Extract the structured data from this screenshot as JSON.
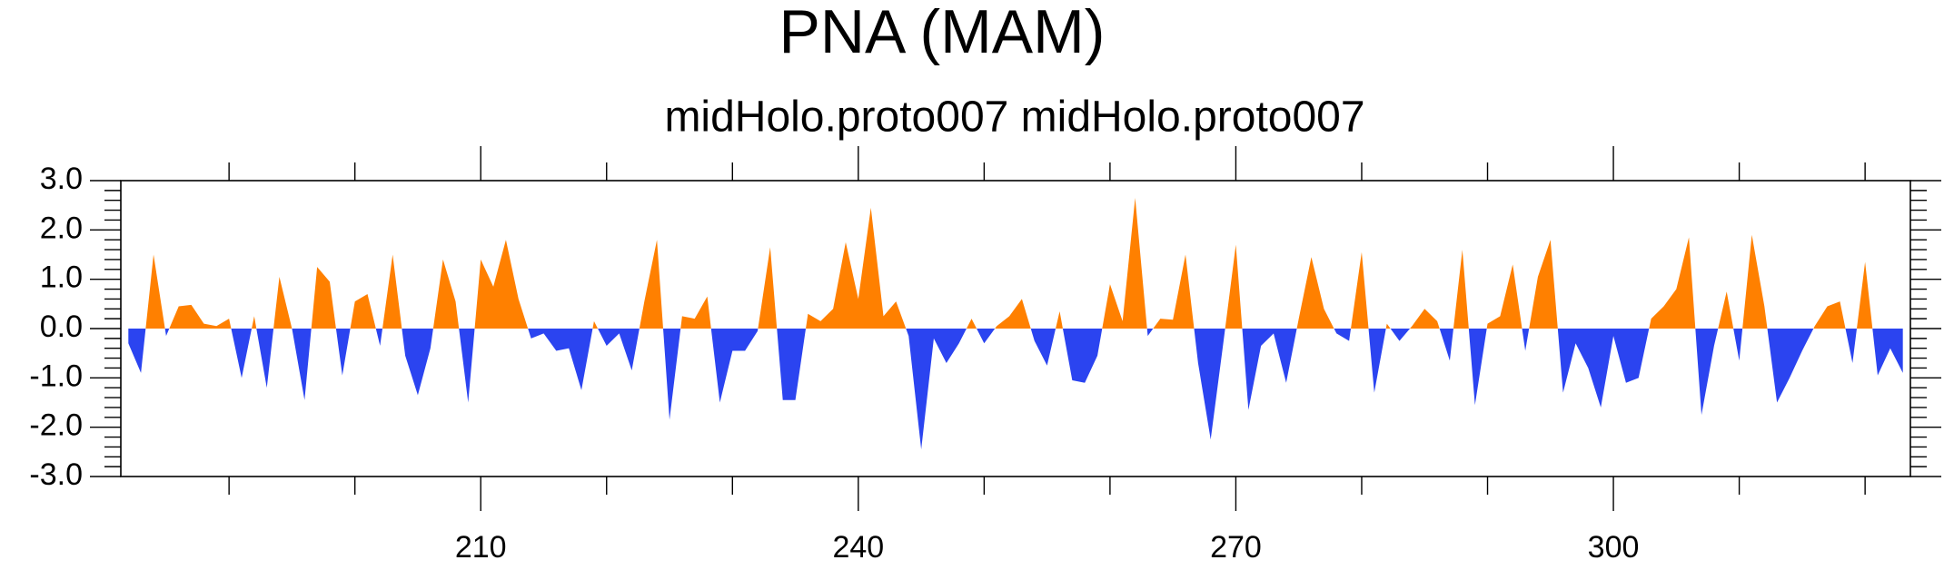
{
  "chart_data": {
    "type": "area",
    "title": "PNA (MAM)",
    "subtitle": "midHolo.proto007  midHolo.proto007",
    "x": [
      182,
      183,
      184,
      185,
      186,
      187,
      188,
      189,
      190,
      191,
      192,
      193,
      194,
      195,
      196,
      197,
      198,
      199,
      200,
      201,
      202,
      203,
      204,
      205,
      206,
      207,
      208,
      209,
      210,
      211,
      212,
      213,
      214,
      215,
      216,
      217,
      218,
      219,
      220,
      221,
      222,
      223,
      224,
      225,
      226,
      227,
      228,
      229,
      230,
      231,
      232,
      233,
      234,
      235,
      236,
      237,
      238,
      239,
      240,
      241,
      242,
      243,
      244,
      245,
      246,
      247,
      248,
      249,
      250,
      251,
      252,
      253,
      254,
      255,
      256,
      257,
      258,
      259,
      260,
      261,
      262,
      263,
      264,
      265,
      266,
      267,
      268,
      269,
      270,
      271,
      272,
      273,
      274,
      275,
      276,
      277,
      278,
      279,
      280,
      281,
      282,
      283,
      284,
      285,
      286,
      287,
      288,
      289,
      290,
      291,
      292,
      293,
      294,
      295,
      296,
      297,
      298,
      299,
      300,
      301,
      302,
      303,
      304,
      305,
      306,
      307,
      308,
      309,
      310,
      311,
      312,
      313,
      314,
      315,
      316,
      317,
      318,
      319,
      320,
      321,
      322,
      323
    ],
    "values": [
      -0.3,
      -0.9,
      1.5,
      -0.15,
      0.45,
      0.48,
      0.1,
      0.05,
      0.2,
      -1.0,
      0.25,
      -1.2,
      1.05,
      0.0,
      -1.45,
      1.25,
      0.95,
      -0.95,
      0.55,
      0.7,
      -0.35,
      1.5,
      -0.55,
      -1.35,
      -0.4,
      1.4,
      0.55,
      -1.5,
      1.4,
      0.85,
      1.8,
      0.6,
      -0.2,
      -0.1,
      -0.45,
      -0.4,
      -1.25,
      0.15,
      -0.35,
      -0.1,
      -0.85,
      0.55,
      1.8,
      -1.85,
      0.25,
      0.2,
      0.65,
      -1.5,
      -0.45,
      -0.45,
      -0.05,
      1.65,
      -1.45,
      -1.45,
      0.3,
      0.15,
      0.4,
      1.75,
      0.6,
      2.45,
      0.25,
      0.55,
      -0.15,
      -2.45,
      -0.2,
      -0.7,
      -0.3,
      0.2,
      -0.3,
      0.05,
      0.25,
      0.6,
      -0.25,
      -0.75,
      0.35,
      -1.05,
      -1.1,
      -0.55,
      0.9,
      0.15,
      2.65,
      -0.15,
      0.2,
      0.18,
      1.5,
      -0.7,
      -2.25,
      -0.3,
      1.7,
      -1.65,
      -0.35,
      -0.1,
      -1.1,
      0.2,
      1.45,
      0.4,
      -0.1,
      -0.25,
      1.55,
      -1.3,
      0.1,
      -0.25,
      0.05,
      0.4,
      0.15,
      -0.65,
      1.6,
      -1.55,
      0.1,
      0.25,
      1.3,
      -0.45,
      1.05,
      1.8,
      -1.3,
      -0.3,
      -0.8,
      -1.6,
      -0.15,
      -1.1,
      -1.0,
      0.2,
      0.45,
      0.8,
      1.85,
      -1.75,
      -0.35,
      0.75,
      -0.65,
      1.9,
      0.45,
      -1.5,
      -1.0,
      -0.45,
      0.05,
      0.45,
      0.55,
      -0.7,
      1.35,
      -0.95,
      -0.4,
      -0.9
    ],
    "colors": {
      "positive": "#ff8000",
      "negative": "#2b44f0"
    },
    "xlim": [
      181.4,
      323.6
    ],
    "ylim": [
      -3.0,
      3.0
    ],
    "xticks": [
      210,
      240,
      270,
      300
    ],
    "x_minor_ticks": [
      190,
      200,
      220,
      230,
      250,
      260,
      280,
      290,
      310,
      320
    ],
    "yticks": [
      {
        "value": -3.0,
        "label": "-3.0"
      },
      {
        "value": -2.0,
        "label": "-2.0"
      },
      {
        "value": -1.0,
        "label": "-1.0"
      },
      {
        "value": 0.0,
        "label": "0.0"
      },
      {
        "value": 1.0,
        "label": "1.0"
      },
      {
        "value": 2.0,
        "label": "2.0"
      },
      {
        "value": 3.0,
        "label": "3.0"
      }
    ],
    "y_minor_ticks": [
      -2.8,
      -2.6,
      -2.4,
      -2.2,
      -1.8,
      -1.6,
      -1.4,
      -1.2,
      -0.8,
      -0.6,
      -0.4,
      -0.2,
      0.2,
      0.4,
      0.6,
      0.8,
      1.2,
      1.4,
      1.6,
      1.8,
      2.2,
      2.4,
      2.6,
      2.8
    ]
  }
}
